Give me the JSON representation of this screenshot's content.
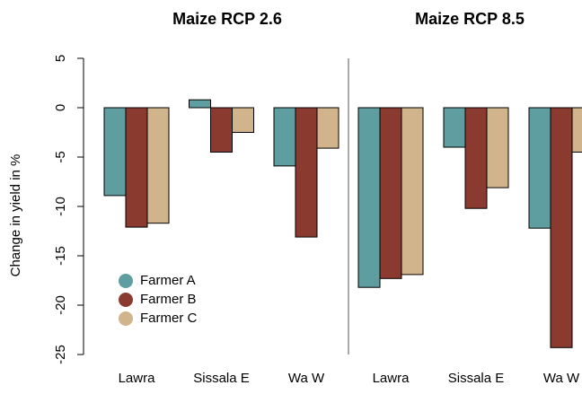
{
  "chart_data": [
    {
      "type": "bar",
      "title": "Maize RCP 2.6",
      "y_label": "Change in yield in %",
      "categories": [
        "Lawra",
        "Sissala E",
        "Wa W"
      ],
      "series": [
        {
          "name": "Farmer A",
          "color": "#5f9ea0",
          "values": [
            -8.9,
            0.8,
            -5.9
          ]
        },
        {
          "name": "Farmer B",
          "color": "#8b3a2f",
          "values": [
            -12.1,
            -4.5,
            -13.1
          ]
        },
        {
          "name": "Farmer C",
          "color": "#d2b48c",
          "values": [
            -11.7,
            -2.5,
            -4.1
          ]
        }
      ],
      "ylim": [
        -25,
        5
      ],
      "yticks": [
        -25,
        -20,
        -15,
        -10,
        -5,
        0,
        5
      ],
      "legend": "lower left"
    },
    {
      "type": "bar",
      "title": "Maize RCP 8.5",
      "categories": [
        "Lawra",
        "Sissala E",
        "Wa W"
      ],
      "series": [
        {
          "name": "Farmer A",
          "color": "#5f9ea0",
          "values": [
            -18.2,
            -4.0,
            -12.2
          ]
        },
        {
          "name": "Farmer B",
          "color": "#8b3a2f",
          "values": [
            -17.3,
            -10.2,
            -24.3
          ]
        },
        {
          "name": "Farmer C",
          "color": "#d2b48c",
          "values": [
            -16.9,
            -8.1,
            -4.5
          ]
        }
      ],
      "ylim": [
        -25,
        5
      ]
    }
  ]
}
